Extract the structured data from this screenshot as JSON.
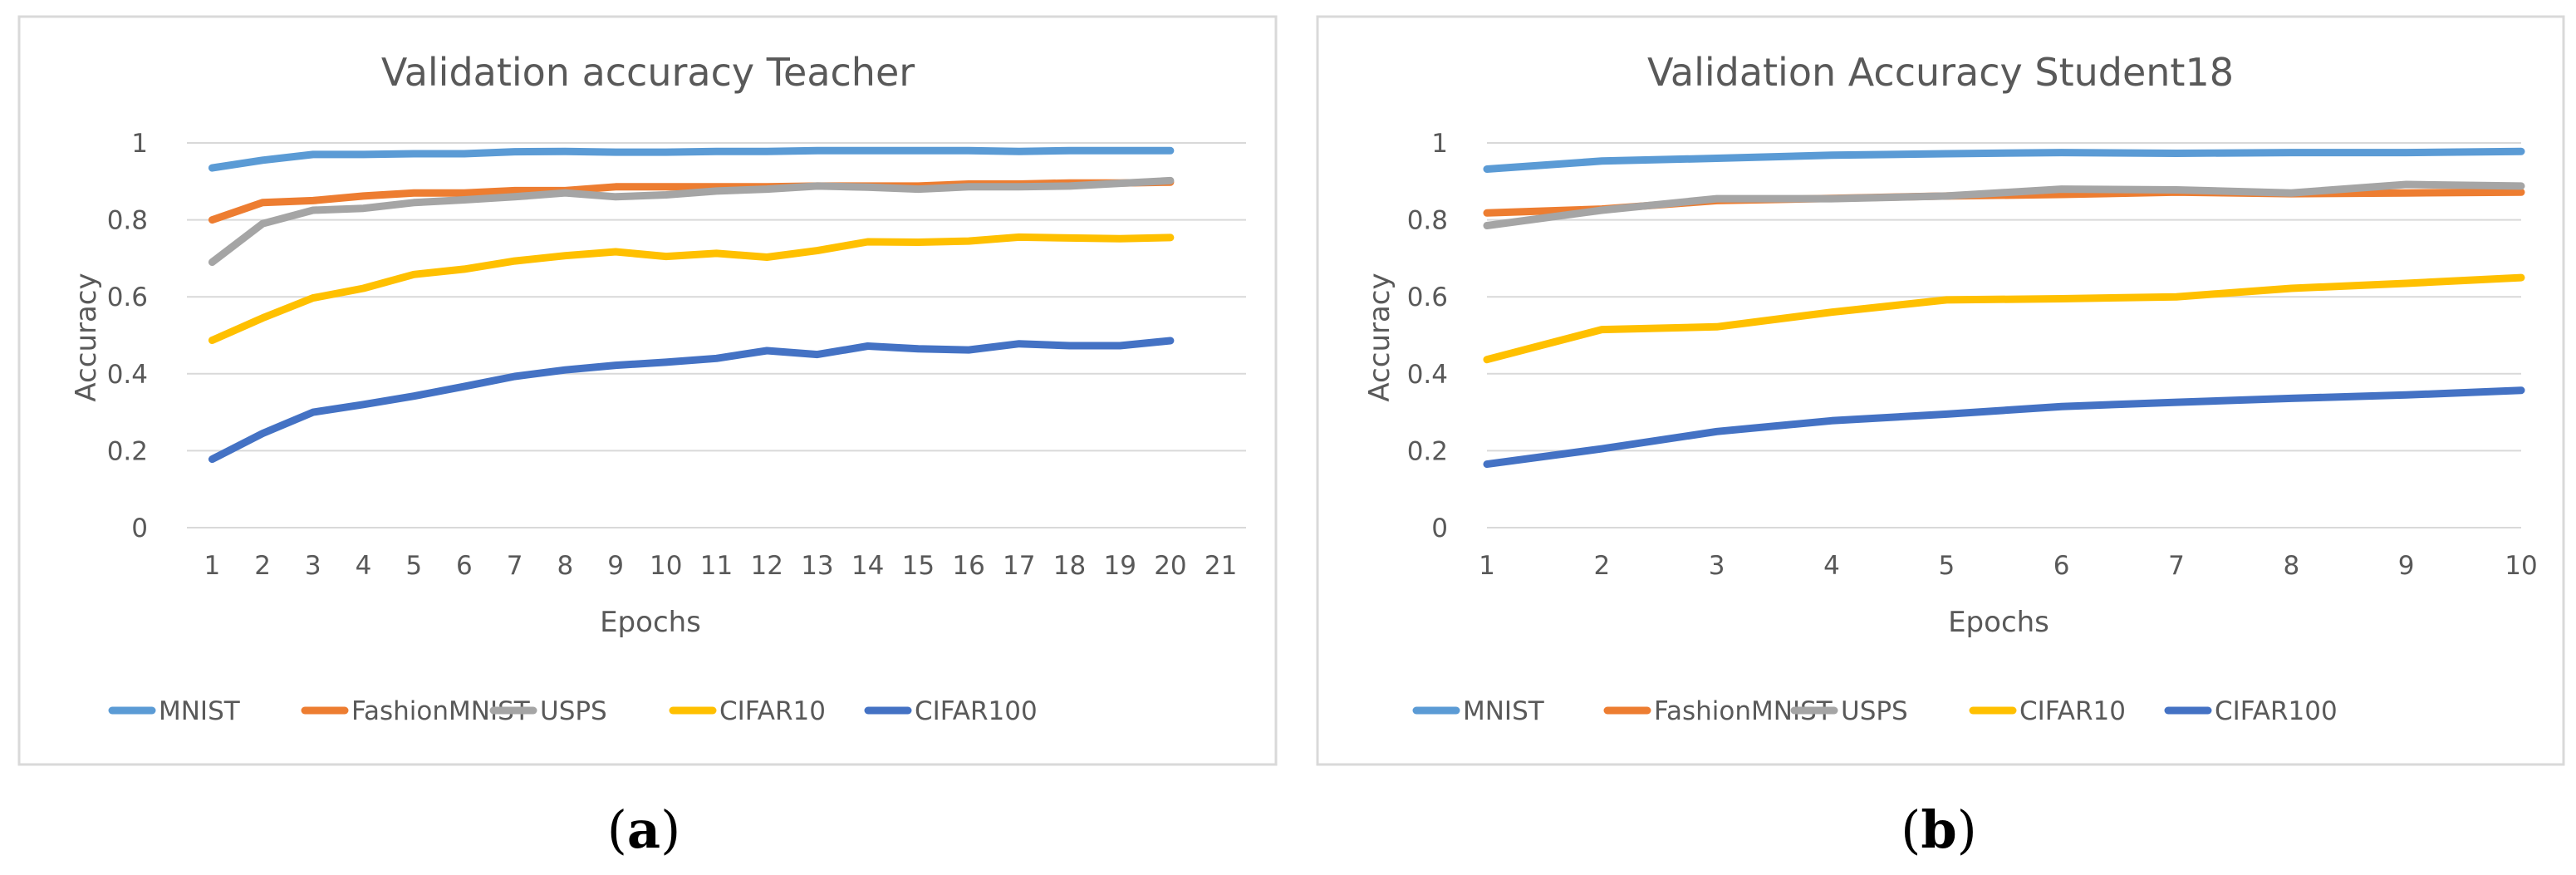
{
  "charts": [
    {
      "caption": {
        "open": "(",
        "letter": "a",
        "close": ")"
      },
      "chart_data": {
        "type": "line",
        "title": "Validation accuracy Teacher",
        "xlabel": "Epochs",
        "ylabel": "Accuracy",
        "x": [
          1,
          2,
          3,
          4,
          5,
          6,
          7,
          8,
          9,
          10,
          11,
          12,
          13,
          14,
          15,
          16,
          17,
          18,
          19,
          20
        ],
        "x_ticks": [
          "1",
          "2",
          "3",
          "4",
          "5",
          "6",
          "7",
          "8",
          "9",
          "10",
          "11",
          "12",
          "13",
          "14",
          "15",
          "16",
          "17",
          "18",
          "19",
          "20",
          "21"
        ],
        "x_range": [
          1,
          21
        ],
        "y_ticks": [
          "0",
          "0.2",
          "0.4",
          "0.6",
          "0.8",
          "1"
        ],
        "ylim": [
          0,
          1
        ],
        "grid": true,
        "legend_position": "bottom",
        "series": [
          {
            "name": "MNIST",
            "color": "#5b9bd5",
            "values": [
              0.935,
              0.955,
              0.97,
              0.97,
              0.972,
              0.972,
              0.977,
              0.978,
              0.976,
              0.976,
              0.978,
              0.978,
              0.98,
              0.98,
              0.98,
              0.98,
              0.978,
              0.98,
              0.98,
              0.98
            ]
          },
          {
            "name": "FashionMNIST",
            "color": "#ed7d31",
            "values": [
              0.8,
              0.845,
              0.85,
              0.862,
              0.87,
              0.87,
              0.876,
              0.876,
              0.886,
              0.886,
              0.886,
              0.886,
              0.888,
              0.888,
              0.888,
              0.893,
              0.893,
              0.896,
              0.896,
              0.898
            ]
          },
          {
            "name": "USPS",
            "color": "#a5a5a5",
            "values": [
              0.69,
              0.79,
              0.825,
              0.83,
              0.845,
              0.852,
              0.86,
              0.87,
              0.86,
              0.865,
              0.875,
              0.88,
              0.888,
              0.885,
              0.88,
              0.886,
              0.886,
              0.888,
              0.895,
              0.902
            ]
          },
          {
            "name": "CIFAR10",
            "color": "#ffc000",
            "values": [
              0.487,
              0.545,
              0.597,
              0.622,
              0.658,
              0.672,
              0.693,
              0.707,
              0.717,
              0.705,
              0.713,
              0.703,
              0.72,
              0.743,
              0.742,
              0.745,
              0.755,
              0.753,
              0.751,
              0.754
            ]
          },
          {
            "name": "CIFAR100",
            "color": "#4472c4",
            "values": [
              0.178,
              0.245,
              0.3,
              0.32,
              0.342,
              0.367,
              0.393,
              0.41,
              0.422,
              0.43,
              0.44,
              0.46,
              0.45,
              0.472,
              0.465,
              0.462,
              0.478,
              0.473,
              0.473,
              0.486
            ]
          }
        ]
      }
    },
    {
      "caption": {
        "open": "(",
        "letter": "b",
        "close": ")"
      },
      "chart_data": {
        "type": "line",
        "title": "Validation Accuracy Student18",
        "xlabel": "Epochs",
        "ylabel": "Accuracy",
        "x": [
          1,
          2,
          3,
          4,
          5,
          6,
          7,
          8,
          9,
          10
        ],
        "x_ticks": [
          "1",
          "2",
          "3",
          "4",
          "5",
          "6",
          "7",
          "8",
          "9",
          "10"
        ],
        "x_range": [
          1,
          10
        ],
        "y_ticks": [
          "0",
          "0.2",
          "0.4",
          "0.6",
          "0.8",
          "1"
        ],
        "ylim": [
          0,
          1
        ],
        "grid": true,
        "legend_position": "bottom",
        "series": [
          {
            "name": "MNIST",
            "color": "#5b9bd5",
            "values": [
              0.932,
              0.953,
              0.96,
              0.968,
              0.972,
              0.975,
              0.973,
              0.975,
              0.975,
              0.978
            ]
          },
          {
            "name": "FashionMNIST",
            "color": "#ed7d31",
            "values": [
              0.818,
              0.828,
              0.85,
              0.856,
              0.862,
              0.866,
              0.872,
              0.868,
              0.87,
              0.872
            ]
          },
          {
            "name": "USPS",
            "color": "#a5a5a5",
            "values": [
              0.785,
              0.825,
              0.855,
              0.855,
              0.862,
              0.88,
              0.878,
              0.87,
              0.892,
              0.888
            ]
          },
          {
            "name": "CIFAR10",
            "color": "#ffc000",
            "values": [
              0.437,
              0.515,
              0.522,
              0.56,
              0.592,
              0.595,
              0.6,
              0.622,
              0.635,
              0.65
            ]
          },
          {
            "name": "CIFAR100",
            "color": "#4472c4",
            "values": [
              0.165,
              0.205,
              0.25,
              0.278,
              0.295,
              0.315,
              0.326,
              0.336,
              0.345,
              0.357
            ]
          }
        ]
      }
    }
  ]
}
